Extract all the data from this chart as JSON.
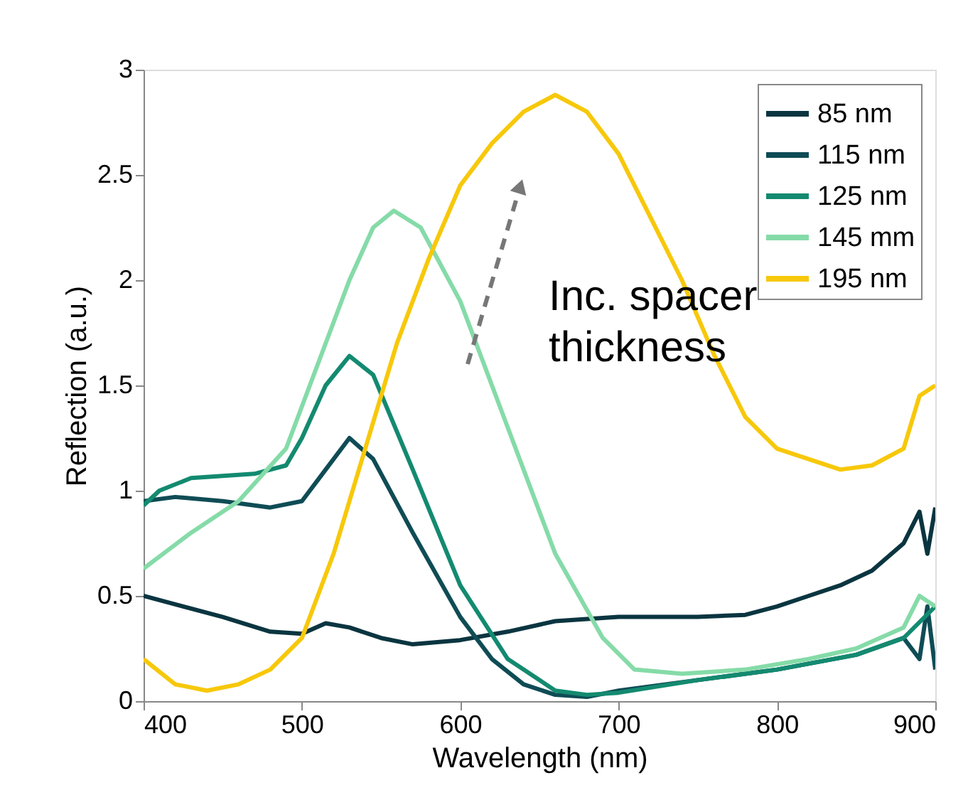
{
  "chart_data": {
    "type": "line",
    "xlabel": "Wavelength (nm)",
    "ylabel": "Reflection (a.u.)",
    "xlim": [
      400,
      900
    ],
    "ylim": [
      0,
      3
    ],
    "xticks": [
      400,
      500,
      600,
      700,
      800,
      900
    ],
    "yticks": [
      0,
      0.5,
      1,
      1.5,
      2,
      2.5,
      3
    ],
    "grid": false,
    "legend": "top right",
    "marker": "none",
    "line_style": "solid",
    "annotations": [
      "Inc. spacer thickness"
    ],
    "series": [
      {
        "name": "85 nm",
        "color": "#0a3540",
        "x": [
          400,
          420,
          450,
          480,
          500,
          515,
          530,
          550,
          570,
          600,
          630,
          660,
          700,
          750,
          780,
          800,
          820,
          840,
          860,
          880,
          890,
          895,
          900
        ],
        "values": [
          0.5,
          0.46,
          0.4,
          0.33,
          0.32,
          0.37,
          0.35,
          0.3,
          0.27,
          0.29,
          0.33,
          0.38,
          0.4,
          0.4,
          0.41,
          0.45,
          0.5,
          0.55,
          0.62,
          0.75,
          0.9,
          0.7,
          0.92
        ]
      },
      {
        "name": "115 nm",
        "color": "#0f4c55",
        "x": [
          400,
          420,
          450,
          480,
          500,
          515,
          530,
          545,
          570,
          600,
          620,
          640,
          660,
          680,
          700,
          750,
          800,
          850,
          880,
          890,
          895,
          900
        ],
        "values": [
          0.95,
          0.97,
          0.95,
          0.92,
          0.95,
          1.1,
          1.25,
          1.15,
          0.8,
          0.4,
          0.2,
          0.08,
          0.03,
          0.02,
          0.05,
          0.1,
          0.15,
          0.22,
          0.3,
          0.2,
          0.45,
          0.15
        ]
      },
      {
        "name": "125 nm",
        "color": "#138a70",
        "x": [
          400,
          410,
          430,
          470,
          490,
          500,
          515,
          530,
          545,
          570,
          600,
          630,
          660,
          680,
          700,
          750,
          800,
          850,
          880,
          900
        ],
        "values": [
          0.93,
          1.0,
          1.06,
          1.08,
          1.12,
          1.25,
          1.5,
          1.64,
          1.55,
          1.1,
          0.55,
          0.2,
          0.05,
          0.03,
          0.04,
          0.1,
          0.15,
          0.22,
          0.3,
          0.45
        ]
      },
      {
        "name": "145 mm",
        "color": "#85dba8",
        "x": [
          400,
          430,
          460,
          490,
          510,
          530,
          545,
          558,
          575,
          600,
          630,
          660,
          690,
          710,
          740,
          780,
          820,
          850,
          880,
          890,
          900
        ],
        "values": [
          0.63,
          0.8,
          0.95,
          1.2,
          1.6,
          2.0,
          2.25,
          2.33,
          2.25,
          1.9,
          1.3,
          0.7,
          0.3,
          0.15,
          0.13,
          0.15,
          0.2,
          0.25,
          0.35,
          0.5,
          0.45
        ]
      },
      {
        "name": "195 nm",
        "color": "#f7c80a",
        "x": [
          400,
          420,
          440,
          460,
          480,
          500,
          520,
          540,
          560,
          580,
          600,
          620,
          640,
          660,
          680,
          700,
          720,
          740,
          760,
          780,
          800,
          820,
          840,
          860,
          880,
          890,
          900
        ],
        "values": [
          0.2,
          0.08,
          0.05,
          0.08,
          0.15,
          0.3,
          0.7,
          1.2,
          1.7,
          2.1,
          2.45,
          2.65,
          2.8,
          2.88,
          2.8,
          2.6,
          2.3,
          2.0,
          1.65,
          1.35,
          1.2,
          1.15,
          1.1,
          1.12,
          1.2,
          1.45,
          1.5
        ]
      }
    ]
  }
}
